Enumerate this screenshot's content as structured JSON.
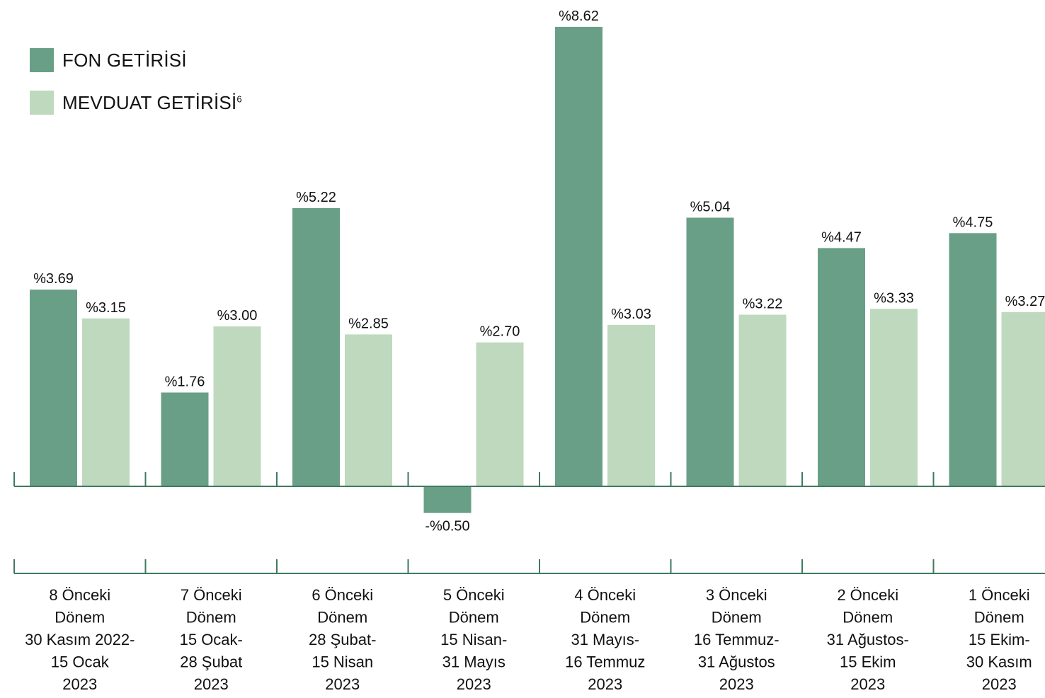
{
  "legend": {
    "fon_label": "FON GETİRİSİ",
    "mevduat_label": "MEVDUAT GETİRİSİ",
    "mevduat_footnote": "6"
  },
  "colors": {
    "fon": "#6a9f87",
    "mevduat": "#bfd9bf",
    "axis": "#3f7a60"
  },
  "chart_data": {
    "type": "bar",
    "categories": [
      [
        "8 Önceki",
        "Dönem",
        "30 Kasım 2022-",
        "15 Ocak",
        "2023"
      ],
      [
        "7 Önceki",
        "Dönem",
        "15 Ocak-",
        "28 Şubat",
        "2023"
      ],
      [
        "6 Önceki",
        "Dönem",
        "28 Şubat-",
        "15 Nisan",
        "2023"
      ],
      [
        "5 Önceki",
        "Dönem",
        "15 Nisan-",
        "31 Mayıs",
        "2023"
      ],
      [
        "4 Önceki",
        "Dönem",
        "31 Mayıs-",
        "16 Temmuz",
        "2023"
      ],
      [
        "3 Önceki",
        "Dönem",
        "16 Temmuz-",
        "31 Ağustos",
        "2023"
      ],
      [
        "2 Önceki",
        "Dönem",
        "31 Ağustos-",
        "15 Ekim",
        "2023"
      ],
      [
        "1 Önceki",
        "Dönem",
        "15 Ekim-",
        "30 Kasım",
        "2023"
      ]
    ],
    "series": [
      {
        "name": "FON GETİRİSİ",
        "values": [
          3.69,
          1.76,
          5.22,
          -0.5,
          8.62,
          5.04,
          4.47,
          4.75
        ],
        "labels": [
          "%3.69",
          "%1.76",
          "%5.22",
          "-%0.50",
          "%8.62",
          "%5.04",
          "%4.47",
          "%4.75"
        ]
      },
      {
        "name": "MEVDUAT GETİRİSİ",
        "values": [
          3.15,
          3.0,
          2.85,
          2.7,
          3.03,
          3.22,
          3.33,
          3.27
        ],
        "labels": [
          "%3.15",
          "%3.00",
          "%2.85",
          "%2.70",
          "%3.03",
          "%3.22",
          "%3.33",
          "%3.27"
        ]
      }
    ],
    "legend_position": "top-left",
    "grid": false
  }
}
